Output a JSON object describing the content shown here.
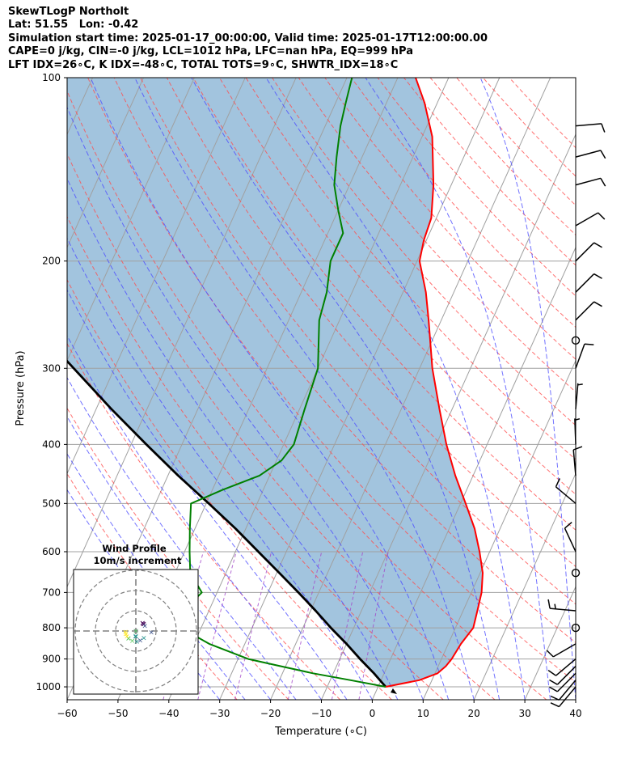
{
  "header": {
    "title": "SkewTLogP Northolt",
    "location": "Lat: 51.55   Lon: -0.42",
    "times": "Simulation start time: 2025-01-17_00:00:00, Valid time: 2025-01-17T12:00:00.00",
    "indices1": "CAPE=0 j/kg, CIN=-0 j/kg, LCL=1012 hPa, LFC=nan hPa, EQ=999 hPa",
    "indices2": "LFT IDX=26∘C, K IDX=-48∘C, TOTAL TOTS=9∘C, SHWTR_IDX=18∘C"
  },
  "chart_data": {
    "type": "line",
    "subtype": "skew-t log-p",
    "xlabel": "Temperature (∘C)",
    "ylabel": "Pressure (hPa)",
    "xlim": [
      -60,
      40
    ],
    "ylim": [
      1050,
      100
    ],
    "x_ticks": [
      "−60",
      "−50",
      "−40",
      "−30",
      "−20",
      "−10",
      "0",
      "10",
      "20",
      "30",
      "40"
    ],
    "y_ticks": [
      "1000",
      "900",
      "800",
      "700",
      "600",
      "500",
      "400",
      "300",
      "200",
      "100"
    ],
    "colors": {
      "temperature": "#ff0000",
      "dewpoint": "#008000",
      "parcel": "#000000",
      "cape_fill": "#7aabd0",
      "dry_adiabats": "#ff4d4d",
      "moist_adiabats": "#4d4dff",
      "mixing_ratio": "#a347c9",
      "isotherms": "#a0a0a0"
    },
    "series": [
      {
        "key": "temperature",
        "points": [
          [
            1000,
            1.5
          ],
          [
            975,
            7.5
          ],
          [
            950,
            10.5
          ],
          [
            925,
            11.5
          ],
          [
            900,
            12
          ],
          [
            850,
            12.5
          ],
          [
            800,
            13.5
          ],
          [
            750,
            12.8
          ],
          [
            700,
            12
          ],
          [
            650,
            10.5
          ],
          [
            600,
            8
          ],
          [
            550,
            5
          ],
          [
            500,
            1
          ],
          [
            450,
            -3.5
          ],
          [
            400,
            -8
          ],
          [
            350,
            -12.5
          ],
          [
            300,
            -17.5
          ],
          [
            250,
            -22.5
          ],
          [
            225,
            -25.5
          ],
          [
            200,
            -29.5
          ],
          [
            185,
            -30.5
          ],
          [
            170,
            -31
          ],
          [
            150,
            -33.5
          ],
          [
            125,
            -38
          ],
          [
            110,
            -42.5
          ],
          [
            100,
            -46.5
          ]
        ]
      },
      {
        "key": "dewpoint",
        "points": [
          [
            1000,
            1.5
          ],
          [
            975,
            -6
          ],
          [
            950,
            -14
          ],
          [
            925,
            -21
          ],
          [
            900,
            -28
          ],
          [
            850,
            -37
          ],
          [
            800,
            -44
          ],
          [
            750,
            -45
          ],
          [
            700,
            -43
          ],
          [
            650,
            -47
          ],
          [
            600,
            -49
          ],
          [
            550,
            -51
          ],
          [
            500,
            -53
          ],
          [
            475,
            -48
          ],
          [
            450,
            -42
          ],
          [
            425,
            -39
          ],
          [
            400,
            -38
          ],
          [
            350,
            -39
          ],
          [
            300,
            -40
          ],
          [
            250,
            -44
          ],
          [
            225,
            -45
          ],
          [
            200,
            -47
          ],
          [
            180,
            -47
          ],
          [
            165,
            -50
          ],
          [
            150,
            -53
          ],
          [
            135,
            -55
          ],
          [
            120,
            -57
          ],
          [
            110,
            -58
          ],
          [
            100,
            -59
          ]
        ]
      },
      {
        "key": "parcel",
        "points": [
          [
            1000,
            1.5
          ],
          [
            950,
            -2
          ],
          [
            900,
            -6
          ],
          [
            850,
            -10
          ],
          [
            800,
            -14.5
          ],
          [
            750,
            -19
          ],
          [
            700,
            -24
          ],
          [
            650,
            -29.5
          ],
          [
            600,
            -35.5
          ],
          [
            550,
            -42
          ],
          [
            500,
            -49.5
          ],
          [
            450,
            -58
          ],
          [
            400,
            -67
          ],
          [
            350,
            -77
          ],
          [
            300,
            -88
          ],
          [
            250,
            -101
          ],
          [
            200,
            -116
          ],
          [
            150,
            -136
          ],
          [
            100,
            -164
          ]
        ]
      }
    ],
    "wind_barbs": [
      {
        "p": 1000,
        "dir": 220,
        "kt": 10
      },
      {
        "p": 975,
        "dir": 220,
        "kt": 10
      },
      {
        "p": 950,
        "dir": 225,
        "kt": 10
      },
      {
        "p": 925,
        "dir": 225,
        "kt": 10
      },
      {
        "p": 900,
        "dir": 230,
        "kt": 10
      },
      {
        "p": 850,
        "dir": 240,
        "kt": 10
      },
      {
        "p": 800,
        "dir": 0,
        "kt": 0
      },
      {
        "p": 750,
        "dir": 275,
        "kt": 15
      },
      {
        "p": 650,
        "dir": 0,
        "kt": 0
      },
      {
        "p": 600,
        "dir": 335,
        "kt": 10
      },
      {
        "p": 500,
        "dir": 310,
        "kt": 10
      },
      {
        "p": 450,
        "dir": 355,
        "kt": 10
      },
      {
        "p": 400,
        "dir": 358,
        "kt": 5
      },
      {
        "p": 350,
        "dir": 5,
        "kt": 5
      },
      {
        "p": 300,
        "dir": 20,
        "kt": 10
      },
      {
        "p": 270,
        "dir": 0,
        "kt": 0
      },
      {
        "p": 250,
        "dir": 45,
        "kt": 10
      },
      {
        "p": 225,
        "dir": 45,
        "kt": 10
      },
      {
        "p": 200,
        "dir": 45,
        "kt": 10
      },
      {
        "p": 175,
        "dir": 60,
        "kt": 10
      },
      {
        "p": 150,
        "dir": 75,
        "kt": 10
      },
      {
        "p": 135,
        "dir": 75,
        "kt": 10
      },
      {
        "p": 120,
        "dir": 85,
        "kt": 10
      }
    ],
    "inset": {
      "title": "Wind Profile",
      "subtitle": "10m/s increment"
    }
  }
}
